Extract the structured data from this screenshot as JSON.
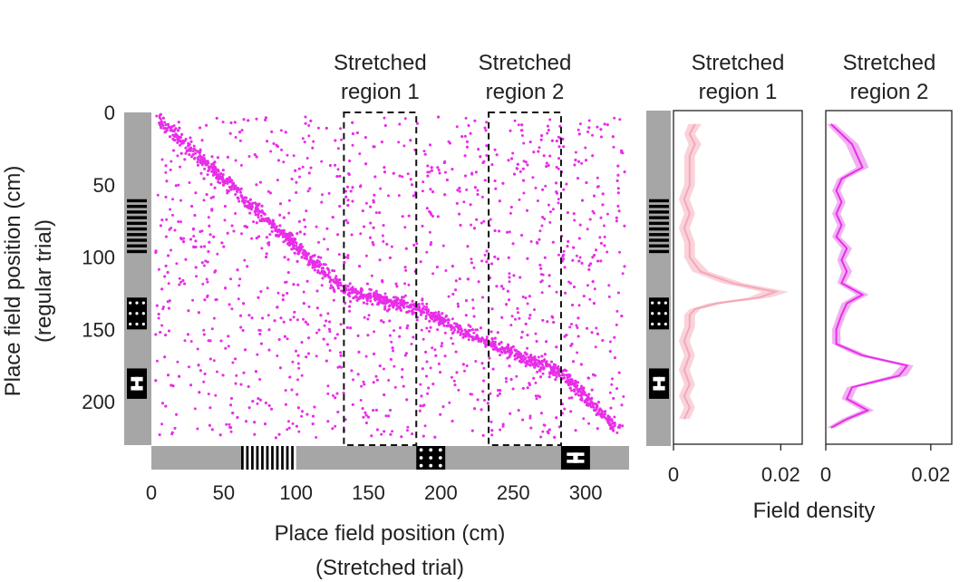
{
  "colors": {
    "accent": "#e82ee8",
    "accent_light": "#f2a9b8",
    "accent_light_band": "#f9cdd6",
    "accent_band": "#f0a8f0",
    "track_gray": "#a6a6a6",
    "frame": "#222222"
  },
  "chart_data": [
    {
      "type": "scatter",
      "title": "",
      "xlabel": "Place field position (cm)",
      "xlabel_sub": "(Stretched trial)",
      "ylabel": "Place field position (cm)",
      "ylabel_sub": "(regular trial)",
      "xlim": [
        0,
        330
      ],
      "ylim": [
        230,
        0
      ],
      "xticks": [
        0,
        50,
        100,
        150,
        200,
        250,
        300
      ],
      "yticks": [
        0,
        50,
        100,
        150,
        200
      ],
      "regions": [
        {
          "label_line1": "Stretched",
          "label_line2": "region 1",
          "x_range": [
            133,
            183
          ]
        },
        {
          "label_line1": "Stretched",
          "label_line2": "region 2",
          "x_range": [
            233,
            283
          ]
        }
      ],
      "point_count": 4500,
      "diagonal_segments": [
        {
          "x_range": [
            5,
            133
          ],
          "y_range": [
            5,
            123
          ]
        },
        {
          "x_range": [
            133,
            183
          ],
          "y_range": [
            123,
            135
          ]
        },
        {
          "x_range": [
            183,
            233
          ],
          "y_range": [
            135,
            160
          ]
        },
        {
          "x_range": [
            233,
            283
          ],
          "y_range": [
            160,
            180
          ]
        },
        {
          "x_range": [
            283,
            323
          ],
          "y_range": [
            180,
            220
          ]
        }
      ]
    },
    {
      "type": "line",
      "title_line1": "Stretched",
      "title_line2": "region 1",
      "xlabel": "Field density",
      "xlim": [
        0,
        0.024
      ],
      "ylim": [
        230,
        0
      ],
      "xticks": [
        0,
        0.02
      ],
      "xtick_labels": [
        "0",
        "0.02"
      ],
      "series": [
        {
          "y": [
            8,
            15,
            22,
            30,
            40,
            50,
            60,
            70,
            80,
            90,
            100,
            110,
            118,
            124,
            128,
            132,
            136,
            140,
            148,
            158,
            168,
            178,
            188,
            196,
            204,
            212
          ],
          "x": [
            0.004,
            0.003,
            0.004,
            0.003,
            0.003,
            0.003,
            0.002,
            0.003,
            0.002,
            0.003,
            0.003,
            0.005,
            0.011,
            0.019,
            0.016,
            0.008,
            0.004,
            0.003,
            0.003,
            0.002,
            0.003,
            0.002,
            0.003,
            0.002,
            0.003,
            0.002
          ],
          "err": [
            0.0012,
            0.001,
            0.0012,
            0.001,
            0.001,
            0.001,
            0.001,
            0.001,
            0.001,
            0.001,
            0.001,
            0.0015,
            0.002,
            0.0025,
            0.002,
            0.0015,
            0.001,
            0.001,
            0.001,
            0.001,
            0.001,
            0.001,
            0.001,
            0.001,
            0.001,
            0.001
          ]
        }
      ]
    },
    {
      "type": "line",
      "title_line1": "Stretched",
      "title_line2": "region 2",
      "xlabel": "",
      "xlim": [
        0,
        0.024
      ],
      "ylim": [
        230,
        0
      ],
      "xticks": [
        0,
        0.02
      ],
      "xtick_labels": [
        "0",
        "0.02"
      ],
      "series": [
        {
          "y": [
            8,
            15,
            22,
            30,
            38,
            46,
            54,
            62,
            70,
            78,
            86,
            94,
            102,
            110,
            118,
            126,
            132,
            140,
            150,
            160,
            168,
            175,
            182,
            190,
            198,
            206,
            212,
            218
          ],
          "x": [
            0.001,
            0.003,
            0.005,
            0.006,
            0.007,
            0.003,
            0.002,
            0.003,
            0.002,
            0.003,
            0.002,
            0.004,
            0.003,
            0.004,
            0.003,
            0.007,
            0.004,
            0.003,
            0.002,
            0.002,
            0.007,
            0.0155,
            0.014,
            0.005,
            0.004,
            0.008,
            0.004,
            0.001
          ],
          "err": [
            0.0008,
            0.001,
            0.0012,
            0.0012,
            0.0012,
            0.0008,
            0.0008,
            0.0008,
            0.0008,
            0.0008,
            0.0008,
            0.001,
            0.0008,
            0.001,
            0.0008,
            0.0012,
            0.001,
            0.0008,
            0.0008,
            0.0008,
            0.0012,
            0.0012,
            0.0015,
            0.001,
            0.001,
            0.0012,
            0.001,
            0.0008
          ]
        }
      ]
    }
  ]
}
